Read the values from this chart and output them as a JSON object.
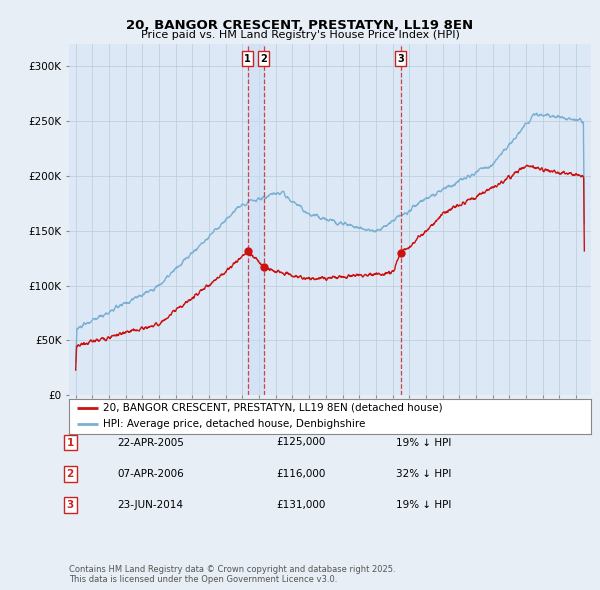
{
  "title": "20, BANGOR CRESCENT, PRESTATYN, LL19 8EN",
  "subtitle": "Price paid vs. HM Land Registry's House Price Index (HPI)",
  "ylim": [
    0,
    320000
  ],
  "yticks": [
    0,
    50000,
    100000,
    150000,
    200000,
    250000,
    300000
  ],
  "ytick_labels": [
    "£0",
    "£50K",
    "£100K",
    "£150K",
    "£200K",
    "£250K",
    "£300K"
  ],
  "bg_color": "#e8eef5",
  "plot_bg_color": "#dce8f5",
  "hpi_color": "#7aafd4",
  "price_color": "#cc1111",
  "vline_color": "#cc3333",
  "shade_color": "#c8ddf0",
  "transactions": [
    {
      "date": 2005.31,
      "price": 125000,
      "label": "1"
    },
    {
      "date": 2006.27,
      "price": 116000,
      "label": "2"
    },
    {
      "date": 2014.48,
      "price": 131000,
      "label": "3"
    }
  ],
  "legend_price_label": "20, BANGOR CRESCENT, PRESTATYN, LL19 8EN (detached house)",
  "legend_hpi_label": "HPI: Average price, detached house, Denbighshire",
  "table_rows": [
    {
      "num": "1",
      "date": "22-APR-2005",
      "price": "£125,000",
      "note": "19% ↓ HPI"
    },
    {
      "num": "2",
      "date": "07-APR-2006",
      "price": "£116,000",
      "note": "32% ↓ HPI"
    },
    {
      "num": "3",
      "date": "23-JUN-2014",
      "price": "£131,000",
      "note": "19% ↓ HPI"
    }
  ],
  "footer": "Contains HM Land Registry data © Crown copyright and database right 2025.\nThis data is licensed under the Open Government Licence v3.0."
}
